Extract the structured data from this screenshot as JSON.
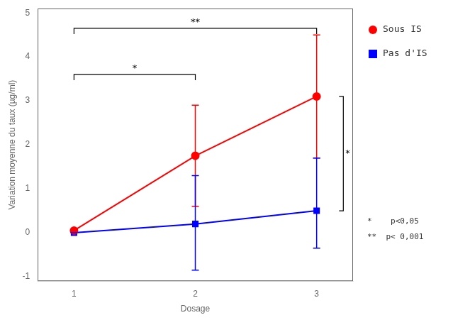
{
  "chart_data": {
    "type": "line",
    "xlabel": "Dosage",
    "ylabel": "Variation moyenne du taux (µg/ml)",
    "x": [
      1,
      2,
      3
    ],
    "series": [
      {
        "name": "Sous IS",
        "color": "#ff0000",
        "marker": "circle",
        "line_style": "solid",
        "values": [
          0.05,
          1.75,
          3.1
        ],
        "yerr_lower": [
          0.0,
          1.15,
          1.4
        ],
        "yerr_upper": [
          0.0,
          1.15,
          1.4
        ]
      },
      {
        "name": "Pas d'IS",
        "color": "#0000ff",
        "marker": "square",
        "line_style": "solid",
        "values": [
          0.0,
          0.2,
          0.5
        ],
        "yerr_lower": [
          0.0,
          1.05,
          0.85
        ],
        "yerr_upper": [
          0.0,
          1.1,
          1.2
        ]
      }
    ],
    "xlim": [
      0.7,
      3.3
    ],
    "ylim": [
      -1.1,
      5.1
    ],
    "xticks": [
      1,
      2,
      3
    ],
    "yticks": [
      -1,
      0,
      1,
      2,
      3,
      4,
      5
    ],
    "grid": false,
    "legend": "right",
    "annotations": [
      {
        "x1": 1,
        "x2": 2,
        "y": 3.6,
        "label": "*"
      },
      {
        "x1": 1,
        "x2": 3,
        "y": 4.65,
        "label": "**"
      },
      {
        "x": 3.22,
        "y1": 3.1,
        "y2": 0.5,
        "label": "*"
      }
    ],
    "notes": [
      "*    p<0,05",
      "**  p< 0,001"
    ]
  }
}
